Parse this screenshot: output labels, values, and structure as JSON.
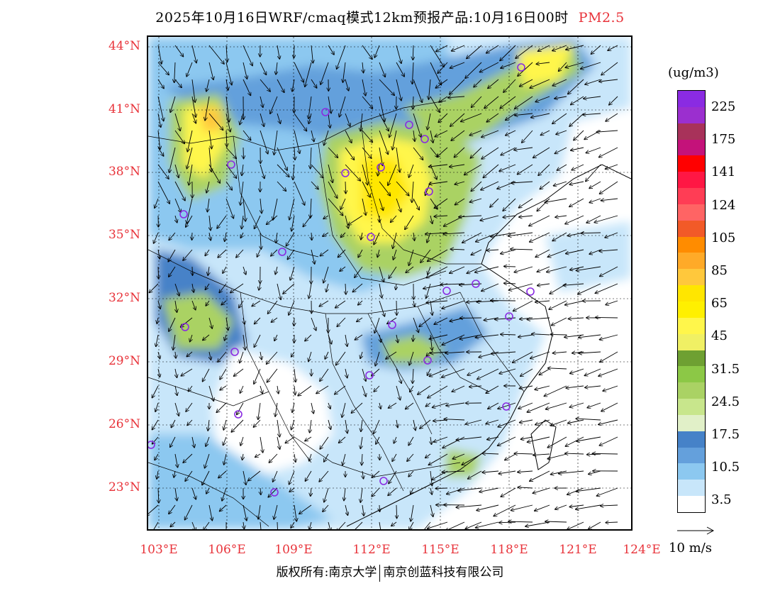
{
  "title": {
    "main": "2025年10月16日WRF/cmaq模式12km预报产品:10月16日00时",
    "species": "PM2.5"
  },
  "colors": {
    "label_red": "#e8333a",
    "site_marker": "#8a2be2"
  },
  "axes": {
    "lat_labels": [
      "44°N",
      "41°N",
      "38°N",
      "35°N",
      "32°N",
      "29°N",
      "26°N",
      "23°N"
    ],
    "lon_labels": [
      "103°E",
      "106°E",
      "109°E",
      "112°E",
      "115°E",
      "118°E",
      "121°E",
      "124°E"
    ]
  },
  "colorbar": {
    "unit": "(ug/m3)",
    "colors": [
      "#8a2be2",
      "#9b2fcf",
      "#a8325a",
      "#c4127a",
      "#ff0000",
      "#ff1744",
      "#ff3d55",
      "#ff6464",
      "#f25a28",
      "#ff8c00",
      "#ffaa28",
      "#ffc83c",
      "#ffe600",
      "#fff000",
      "#fff64b",
      "#f0f064",
      "#6ea032",
      "#8cc846",
      "#aad264",
      "#c8e68c",
      "#e1f0c8",
      "#4682c8",
      "#64a0dc",
      "#8cc8f0",
      "#c8e6fa",
      "#ffffff"
    ],
    "labels": [
      "225",
      "175",
      "141",
      "124",
      "105",
      "85",
      "65",
      "45",
      "31.5",
      "24.5",
      "17.5",
      "10.5",
      "3.5"
    ]
  },
  "wind_reference": {
    "label": "10 m/s"
  },
  "copyright": {
    "left": "版权所有:南京大学",
    "right": "南京创蓝科技有限公司"
  }
}
